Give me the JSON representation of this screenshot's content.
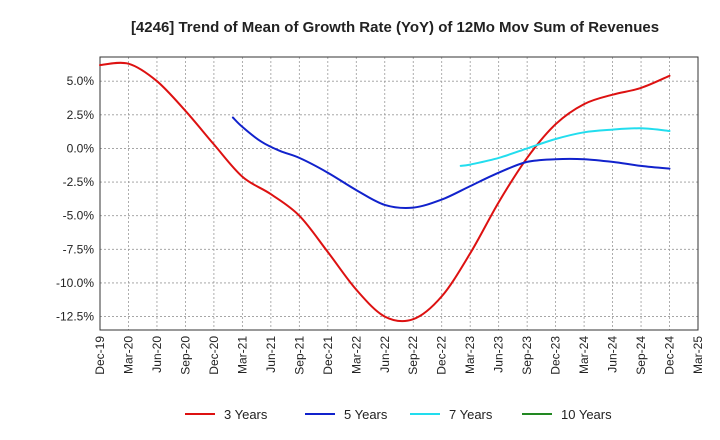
{
  "chart_data": {
    "type": "line",
    "title": "[4246]  Trend of Mean of Growth Rate (YoY) of 12Mo Mov Sum of Revenues",
    "xlabel": "",
    "ylabel": "",
    "ylim": [
      -13.5,
      6.8
    ],
    "yticks": [
      5.0,
      2.5,
      0.0,
      -2.5,
      -5.0,
      -7.5,
      -10.0,
      -12.5
    ],
    "ytick_labels": [
      "5.0%",
      "2.5%",
      "0.0%",
      "-2.5%",
      "-5.0%",
      "-7.5%",
      "-10.0%",
      "-12.5%"
    ],
    "xtick_labels": [
      "Dec-19",
      "Mar-20",
      "Jun-20",
      "Sep-20",
      "Dec-20",
      "Mar-21",
      "Jun-21",
      "Sep-21",
      "Dec-21",
      "Mar-22",
      "Jun-22",
      "Sep-22",
      "Dec-22",
      "Mar-23",
      "Jun-23",
      "Sep-23",
      "Dec-23",
      "Mar-24",
      "Jun-24",
      "Sep-24",
      "Dec-24",
      "Mar-25"
    ],
    "x_unit": "months since Dec-19",
    "xlim": [
      0,
      63
    ],
    "grid": true,
    "legend_position": "bottom",
    "series": [
      {
        "name": "3 Years",
        "color": "#dd1111",
        "x": [
          0,
          3,
          6,
          9,
          12,
          15,
          18,
          21,
          24,
          27,
          30,
          33,
          36,
          39,
          42,
          45,
          48,
          51,
          54,
          57,
          60
        ],
        "values": [
          6.2,
          6.3,
          5.0,
          2.8,
          0.3,
          -2.1,
          -3.4,
          -5.0,
          -7.7,
          -10.5,
          -12.5,
          -12.7,
          -11.0,
          -7.8,
          -4.0,
          -0.7,
          1.8,
          3.3,
          4.0,
          4.5,
          5.4
        ]
      },
      {
        "name": "5 Years",
        "color": "#1122cc",
        "x": [
          14,
          15,
          17,
          19,
          21,
          24,
          27,
          30,
          33,
          36,
          39,
          42,
          45,
          48,
          51,
          54,
          57,
          60
        ],
        "values": [
          2.3,
          1.6,
          0.5,
          -0.2,
          -0.7,
          -1.8,
          -3.1,
          -4.2,
          -4.4,
          -3.8,
          -2.8,
          -1.8,
          -1.0,
          -0.8,
          -0.8,
          -1.0,
          -1.3,
          -1.5
        ]
      },
      {
        "name": "7 Years",
        "color": "#22ddee",
        "x": [
          38,
          39,
          42,
          45,
          48,
          51,
          54,
          57,
          60
        ],
        "values": [
          -1.3,
          -1.2,
          -0.7,
          0.0,
          0.7,
          1.2,
          1.4,
          1.5,
          1.3
        ]
      },
      {
        "name": "10 Years",
        "color": "#228822",
        "x": [],
        "values": []
      }
    ]
  }
}
